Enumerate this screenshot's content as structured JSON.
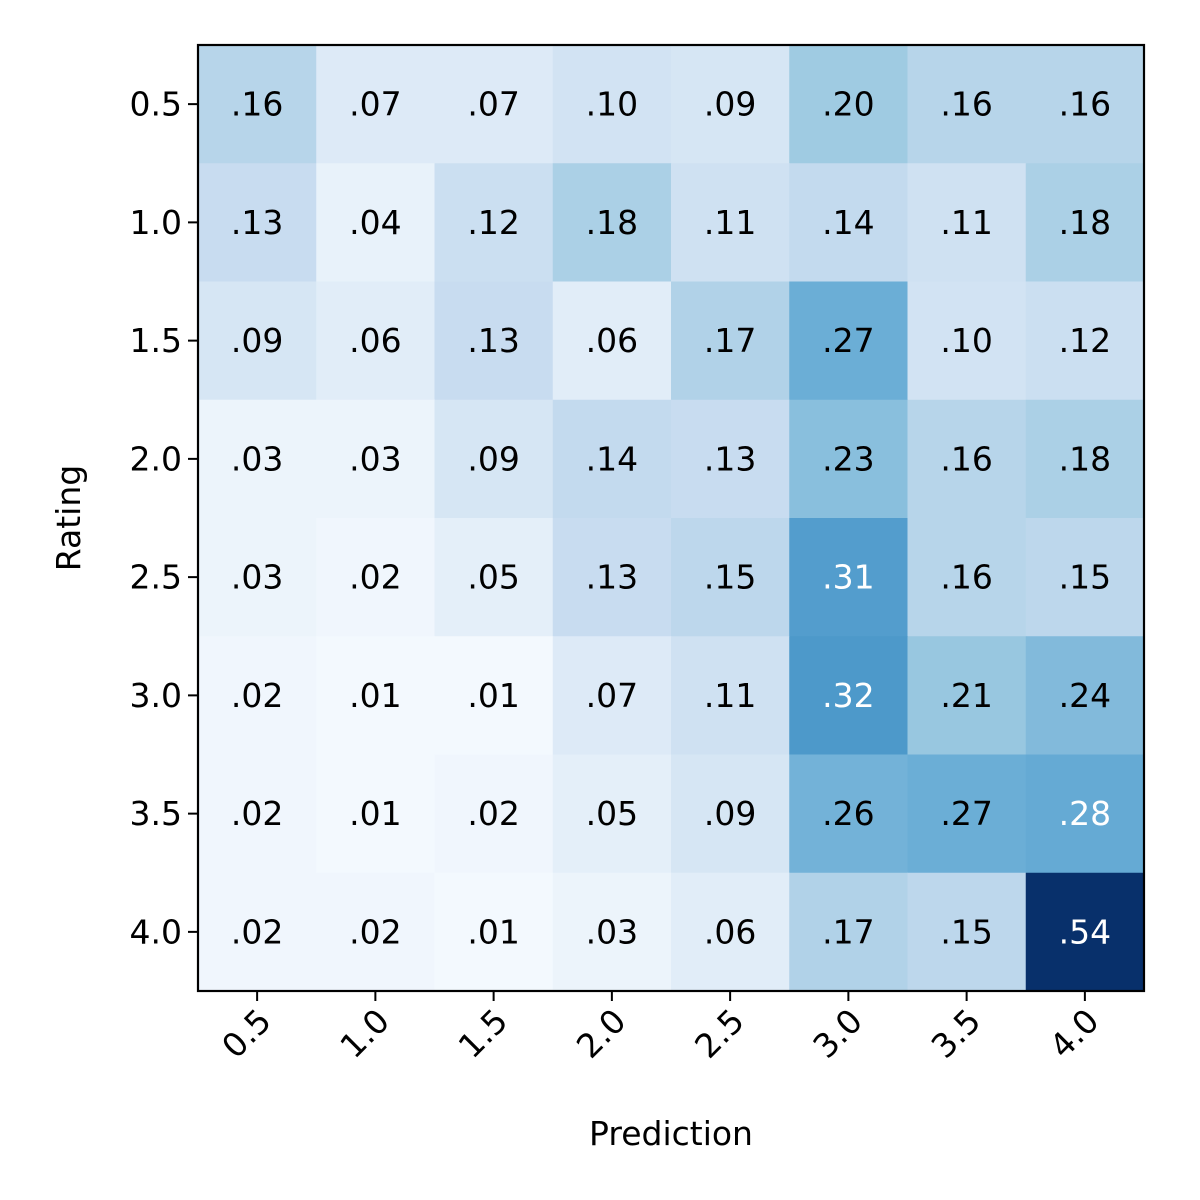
{
  "chart_data": {
    "type": "heatmap",
    "title": "",
    "xlabel": "Prediction",
    "ylabel": "Rating",
    "x_categories": [
      "0.5",
      "1.0",
      "1.5",
      "2.0",
      "2.5",
      "3.0",
      "3.5",
      "4.0"
    ],
    "y_categories": [
      "0.5",
      "1.0",
      "1.5",
      "2.0",
      "2.5",
      "3.0",
      "3.5",
      "4.0"
    ],
    "colormap": "Blues",
    "value_range": [
      0,
      0.54
    ],
    "grid": false,
    "values": [
      [
        0.16,
        0.07,
        0.07,
        0.1,
        0.09,
        0.2,
        0.16,
        0.16
      ],
      [
        0.13,
        0.04,
        0.12,
        0.18,
        0.11,
        0.14,
        0.11,
        0.18
      ],
      [
        0.09,
        0.06,
        0.13,
        0.06,
        0.17,
        0.27,
        0.1,
        0.12
      ],
      [
        0.03,
        0.03,
        0.09,
        0.14,
        0.13,
        0.23,
        0.16,
        0.18
      ],
      [
        0.03,
        0.02,
        0.05,
        0.13,
        0.15,
        0.31,
        0.16,
        0.15
      ],
      [
        0.02,
        0.01,
        0.01,
        0.07,
        0.11,
        0.32,
        0.21,
        0.24
      ],
      [
        0.02,
        0.01,
        0.02,
        0.05,
        0.09,
        0.26,
        0.27,
        0.28
      ],
      [
        0.02,
        0.02,
        0.01,
        0.03,
        0.06,
        0.17,
        0.15,
        0.54
      ]
    ],
    "labels": [
      [
        ".16",
        ".07",
        ".07",
        ".10",
        ".09",
        ".20",
        ".16",
        ".16"
      ],
      [
        ".13",
        ".04",
        ".12",
        ".18",
        ".11",
        ".14",
        ".11",
        ".18"
      ],
      [
        ".09",
        ".06",
        ".13",
        ".06",
        ".17",
        ".27",
        ".10",
        ".12"
      ],
      [
        ".03",
        ".03",
        ".09",
        ".14",
        ".13",
        ".23",
        ".16",
        ".18"
      ],
      [
        ".03",
        ".02",
        ".05",
        ".13",
        ".15",
        ".31",
        ".16",
        ".15"
      ],
      [
        ".02",
        ".01",
        ".01",
        ".07",
        ".11",
        ".32",
        ".21",
        ".24"
      ],
      [
        ".02",
        ".01",
        ".02",
        ".05",
        ".09",
        ".26",
        ".27",
        ".28"
      ],
      [
        ".02",
        ".02",
        ".01",
        ".03",
        ".06",
        ".17",
        ".15",
        ".54"
      ]
    ]
  }
}
